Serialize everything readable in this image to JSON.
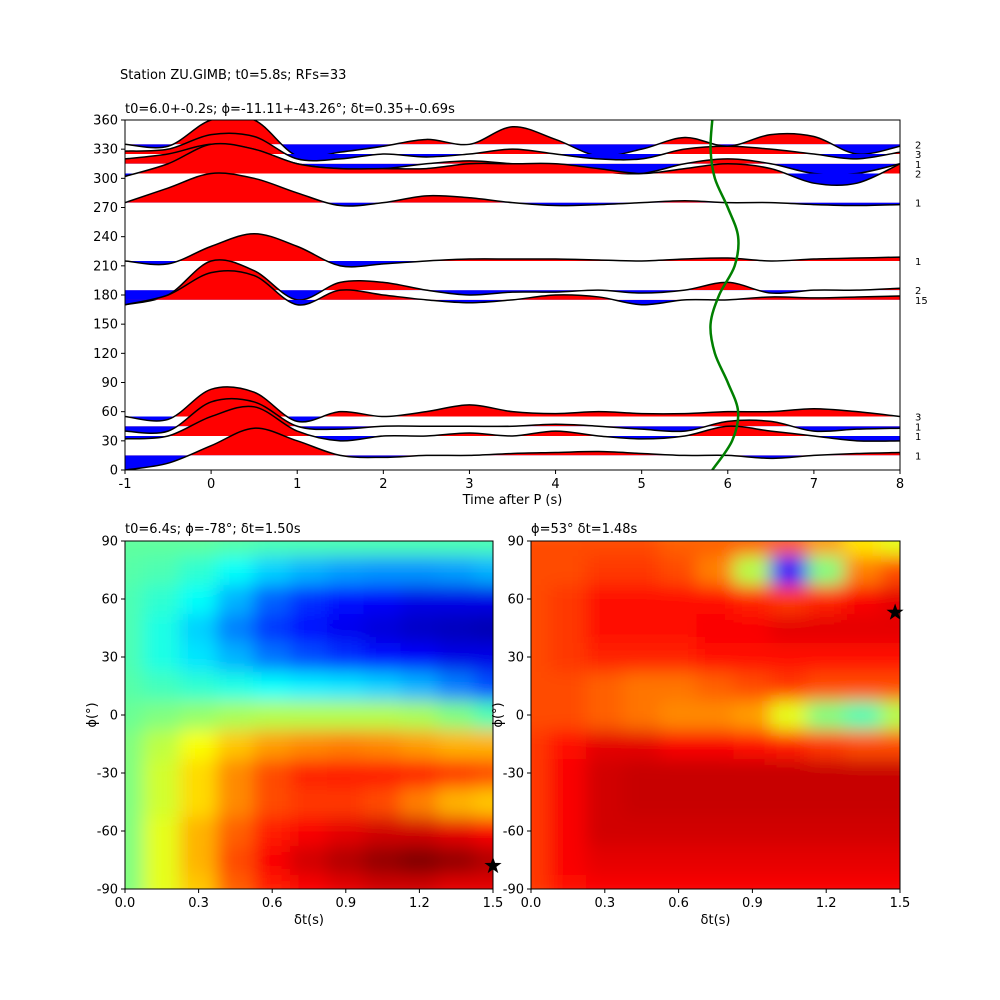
{
  "chart_data": [
    {
      "type": "wiggle",
      "suptitle": "Station ZU.GIMB; t0=5.8s; RFs=33",
      "title": "t0=6.0+-0.2s; ϕ=-11.11+-43.26°; δt=0.35+-0.69s",
      "xlabel": "Time after P (s)",
      "xlim": [
        -1,
        8
      ],
      "xticks": [
        -1,
        0,
        1,
        2,
        3,
        4,
        5,
        6,
        7,
        8
      ],
      "ylim": [
        0,
        360
      ],
      "yticks": [
        0,
        30,
        60,
        90,
        120,
        150,
        180,
        210,
        240,
        270,
        300,
        330,
        360
      ],
      "pos_color": "#ff0000",
      "neg_color": "#0000ff",
      "x": [
        -1,
        -0.5,
        0,
        0.5,
        1,
        1.5,
        2,
        2.5,
        3,
        3.5,
        4,
        4.5,
        5,
        5.5,
        6,
        6.5,
        7,
        7.5,
        8
      ],
      "traces": [
        {
          "baz": 335,
          "count": 2,
          "values": [
            0,
            -2,
            25,
            25,
            -12,
            -8,
            -2,
            5,
            0,
            18,
            5,
            -12,
            -5,
            7,
            -2,
            10,
            8,
            -10,
            -2
          ]
        },
        {
          "baz": 325,
          "count": 3,
          "values": [
            3,
            5,
            20,
            18,
            -5,
            -5,
            0,
            -3,
            0,
            5,
            0,
            -5,
            -5,
            5,
            8,
            5,
            0,
            -5,
            2
          ]
        },
        {
          "baz": 315,
          "count": 1,
          "values": [
            5,
            10,
            20,
            15,
            0,
            -5,
            -5,
            0,
            3,
            0,
            -3,
            -8,
            -10,
            0,
            5,
            0,
            -10,
            -10,
            0
          ]
        },
        {
          "baz": 305,
          "count": 2,
          "values": [
            -3,
            10,
            30,
            25,
            10,
            5,
            5,
            5,
            10,
            10,
            10,
            5,
            0,
            5,
            10,
            5,
            -10,
            -10,
            10
          ]
        },
        {
          "baz": 275,
          "count": 1,
          "values": [
            0,
            15,
            30,
            25,
            10,
            -3,
            0,
            7,
            5,
            0,
            -3,
            -2,
            0,
            2,
            0,
            0,
            -2,
            -3,
            -2
          ]
        },
        {
          "baz": 215,
          "count": 1,
          "values": [
            0,
            -3,
            15,
            28,
            15,
            -5,
            -3,
            0,
            2,
            2,
            2,
            1,
            0,
            2,
            3,
            0,
            2,
            3,
            4
          ]
        },
        {
          "baz": 185,
          "count": 2,
          "values": [
            -15,
            -5,
            30,
            20,
            -10,
            8,
            8,
            0,
            -5,
            -2,
            -2,
            0,
            -3,
            0,
            8,
            -3,
            0,
            0,
            2
          ]
        },
        {
          "baz": 175,
          "count": 15,
          "values": [
            -5,
            5,
            28,
            25,
            -5,
            10,
            5,
            0,
            -3,
            0,
            5,
            3,
            -5,
            0,
            0,
            3,
            2,
            3,
            4
          ]
        },
        {
          "baz": 55,
          "count": 3,
          "values": [
            0,
            -3,
            28,
            25,
            -5,
            5,
            0,
            5,
            12,
            5,
            3,
            5,
            3,
            3,
            5,
            5,
            8,
            5,
            0
          ]
        },
        {
          "baz": 45,
          "count": 1,
          "values": [
            -5,
            -5,
            25,
            25,
            0,
            -3,
            0,
            0,
            0,
            0,
            2,
            0,
            -3,
            -5,
            5,
            5,
            -5,
            -3,
            -2
          ]
        },
        {
          "baz": 35,
          "count": 1,
          "values": [
            -3,
            0,
            20,
            30,
            5,
            -5,
            0,
            0,
            3,
            0,
            5,
            0,
            -3,
            0,
            10,
            5,
            0,
            -5,
            -5
          ]
        },
        {
          "baz": 15,
          "count": 1,
          "values": [
            -15,
            -8,
            10,
            28,
            15,
            0,
            -2,
            0,
            0,
            2,
            3,
            4,
            2,
            0,
            0,
            -3,
            0,
            2,
            3
          ]
        }
      ],
      "curve": {
        "color": "#008000",
        "baz": [
          0,
          30,
          60,
          90,
          120,
          150,
          180,
          210,
          240,
          270,
          300,
          330,
          360
        ],
        "t": [
          5.82,
          6.05,
          6.12,
          6.0,
          5.85,
          5.8,
          5.9,
          6.08,
          6.12,
          6.0,
          5.85,
          5.8,
          5.82
        ]
      }
    },
    {
      "type": "heatmap",
      "title": "t0=6.4s; ϕ=-78°; δt=1.50s",
      "xlabel": "δt(s)",
      "ylabel": "ϕ(°)",
      "colormap": "jet",
      "xlim": [
        0,
        1.5
      ],
      "xticks": [
        {
          "value": 0,
          "label": "0.0"
        },
        0.3,
        0.6,
        0.9,
        1.2,
        1.5
      ],
      "ylim": [
        -90,
        90
      ],
      "yticks": [
        -90,
        -60,
        -30,
        0,
        30,
        60,
        90
      ],
      "x": [
        0,
        0.15,
        0.3,
        0.45,
        0.6,
        0.75,
        0.9,
        1.05,
        1.2,
        1.35,
        1.5
      ],
      "y": [
        -90,
        -75,
        -60,
        -45,
        -30,
        -15,
        0,
        15,
        30,
        45,
        60,
        75,
        90
      ],
      "z": [
        [
          0.5,
          0.6,
          0.68,
          0.78,
          0.85,
          0.88,
          0.9,
          0.92,
          0.92,
          0.9,
          0.9
        ],
        [
          0.5,
          0.6,
          0.7,
          0.8,
          0.88,
          0.92,
          0.95,
          0.98,
          1.0,
          0.98,
          0.95
        ],
        [
          0.5,
          0.6,
          0.7,
          0.78,
          0.85,
          0.88,
          0.9,
          0.92,
          0.92,
          0.9,
          0.88
        ],
        [
          0.5,
          0.58,
          0.66,
          0.74,
          0.8,
          0.82,
          0.82,
          0.8,
          0.75,
          0.7,
          0.68
        ],
        [
          0.5,
          0.58,
          0.66,
          0.74,
          0.8,
          0.84,
          0.85,
          0.85,
          0.84,
          0.82,
          0.8
        ],
        [
          0.5,
          0.56,
          0.62,
          0.68,
          0.72,
          0.74,
          0.75,
          0.74,
          0.72,
          0.7,
          0.7
        ],
        [
          0.48,
          0.5,
          0.52,
          0.54,
          0.55,
          0.55,
          0.55,
          0.55,
          0.54,
          0.5,
          0.45
        ],
        [
          0.46,
          0.44,
          0.42,
          0.4,
          0.38,
          0.36,
          0.35,
          0.33,
          0.3,
          0.25,
          0.2
        ],
        [
          0.45,
          0.4,
          0.35,
          0.3,
          0.24,
          0.2,
          0.17,
          0.14,
          0.12,
          0.1,
          0.1
        ],
        [
          0.45,
          0.4,
          0.33,
          0.25,
          0.18,
          0.14,
          0.11,
          0.09,
          0.07,
          0.06,
          0.05
        ],
        [
          0.45,
          0.42,
          0.38,
          0.3,
          0.22,
          0.17,
          0.14,
          0.12,
          0.1,
          0.1,
          0.1
        ],
        [
          0.46,
          0.45,
          0.42,
          0.38,
          0.33,
          0.3,
          0.28,
          0.27,
          0.27,
          0.28,
          0.3
        ],
        [
          0.47,
          0.47,
          0.47,
          0.46,
          0.45,
          0.45,
          0.45,
          0.45,
          0.45,
          0.45,
          0.45
        ]
      ],
      "marker": {
        "x": 1.5,
        "y": -78,
        "color": "#000000"
      }
    },
    {
      "type": "heatmap",
      "title": "ϕ=53° δt=1.48s",
      "xlabel": "δt(s)",
      "ylabel": "ϕ(°)",
      "colormap": "jet",
      "xlim": [
        0,
        1.5
      ],
      "xticks": [
        {
          "value": 0,
          "label": "0.0"
        },
        0.3,
        0.6,
        0.9,
        1.2,
        1.5
      ],
      "ylim": [
        -90,
        90
      ],
      "yticks": [
        -90,
        -60,
        -30,
        0,
        30,
        60,
        90
      ],
      "x": [
        0,
        0.15,
        0.3,
        0.45,
        0.6,
        0.75,
        0.9,
        1.05,
        1.2,
        1.35,
        1.5
      ],
      "y": [
        -90,
        -75,
        -60,
        -45,
        -30,
        -15,
        0,
        15,
        30,
        45,
        60,
        75,
        90
      ],
      "z": [
        [
          0.82,
          0.86,
          0.88,
          0.88,
          0.88,
          0.88,
          0.88,
          0.88,
          0.88,
          0.88,
          0.88
        ],
        [
          0.82,
          0.88,
          0.9,
          0.9,
          0.9,
          0.9,
          0.9,
          0.9,
          0.9,
          0.9,
          0.9
        ],
        [
          0.82,
          0.88,
          0.92,
          0.92,
          0.92,
          0.92,
          0.92,
          0.92,
          0.92,
          0.92,
          0.92
        ],
        [
          0.82,
          0.88,
          0.92,
          0.93,
          0.93,
          0.93,
          0.93,
          0.93,
          0.93,
          0.93,
          0.93
        ],
        [
          0.82,
          0.88,
          0.92,
          0.93,
          0.93,
          0.93,
          0.93,
          0.93,
          0.93,
          0.93,
          0.93
        ],
        [
          0.82,
          0.86,
          0.9,
          0.9,
          0.88,
          0.88,
          0.86,
          0.85,
          0.82,
          0.8,
          0.8
        ],
        [
          0.8,
          0.8,
          0.78,
          0.76,
          0.74,
          0.74,
          0.72,
          0.6,
          0.5,
          0.45,
          0.55
        ],
        [
          0.8,
          0.8,
          0.78,
          0.76,
          0.76,
          0.78,
          0.8,
          0.82,
          0.8,
          0.8,
          0.8
        ],
        [
          0.8,
          0.82,
          0.84,
          0.84,
          0.84,
          0.86,
          0.86,
          0.86,
          0.86,
          0.86,
          0.86
        ],
        [
          0.8,
          0.82,
          0.86,
          0.86,
          0.86,
          0.88,
          0.88,
          0.9,
          0.9,
          0.9,
          0.9
        ],
        [
          0.8,
          0.82,
          0.86,
          0.86,
          0.86,
          0.86,
          0.84,
          0.82,
          0.84,
          0.88,
          0.9
        ],
        [
          0.8,
          0.8,
          0.82,
          0.82,
          0.8,
          0.75,
          0.55,
          0.15,
          0.5,
          0.75,
          0.8
        ],
        [
          0.8,
          0.8,
          0.8,
          0.8,
          0.78,
          0.78,
          0.78,
          0.78,
          0.72,
          0.65,
          0.6
        ]
      ],
      "marker": {
        "x": 1.48,
        "y": 53,
        "color": "#000000"
      }
    }
  ]
}
